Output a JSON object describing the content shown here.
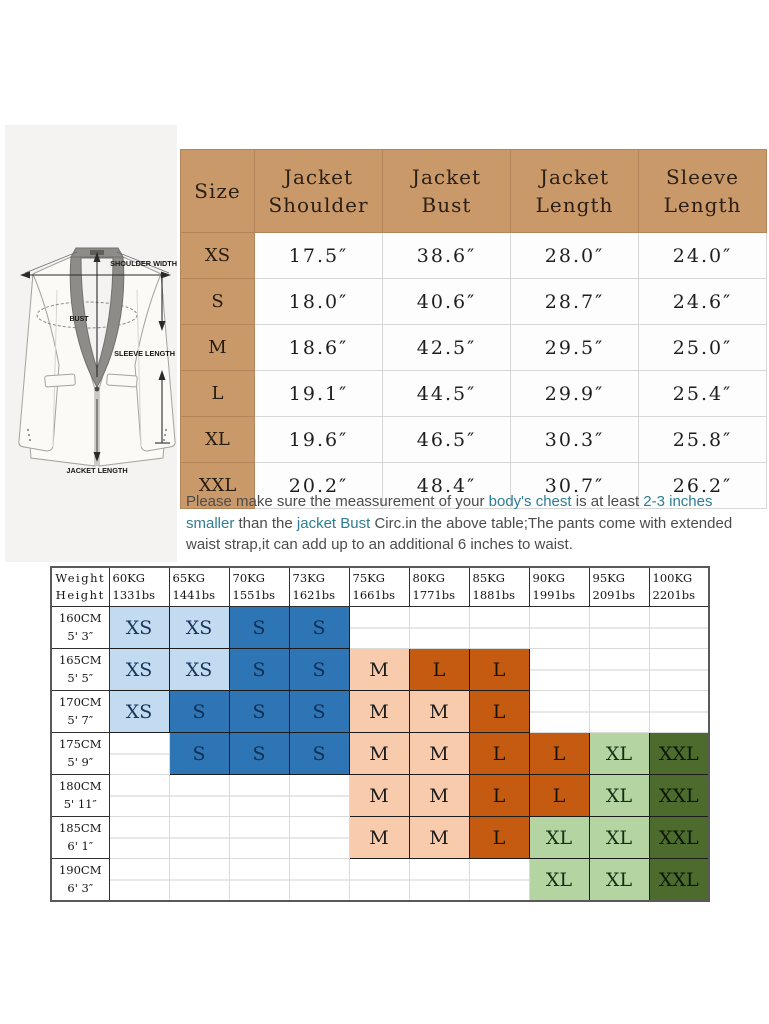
{
  "size_table": {
    "columns": [
      "Size",
      "Jacket Shoulder",
      "Jacket Bust",
      "Jacket Length",
      "Sleeve Length"
    ],
    "rows": [
      {
        "size": "XS",
        "values": [
          "17.5″",
          "38.6″",
          "28.0″",
          "24.0″"
        ]
      },
      {
        "size": "S",
        "values": [
          "18.0″",
          "40.6″",
          "28.7″",
          "24.6″"
        ]
      },
      {
        "size": "M",
        "values": [
          "18.6″",
          "42.5″",
          "29.5″",
          "25.0″"
        ]
      },
      {
        "size": "L",
        "values": [
          "19.1″",
          "44.5″",
          "29.9″",
          "25.4″"
        ]
      },
      {
        "size": "XL",
        "values": [
          "19.6″",
          "46.5″",
          "30.3″",
          "25.8″"
        ]
      },
      {
        "size": "XXL",
        "values": [
          "20.2″",
          "48.4″",
          "30.7″",
          "26.2″"
        ]
      }
    ]
  },
  "note": {
    "lines": [
      [
        {
          "t": "Please make sure the meassurement of your ",
          "h": false
        },
        {
          "t": "body's chest",
          "h": true
        },
        {
          "t": " is at least ",
          "h": false
        },
        {
          "t": "2-3 inches",
          "h": true
        }
      ],
      [
        {
          "t": "smaller",
          "h": true
        },
        {
          "t": " than the ",
          "h": false
        },
        {
          "t": "jacket Bust",
          "h": true
        },
        {
          "t": " Circ.in the above table;The pants come with extended",
          "h": false
        }
      ],
      [
        {
          "t": "waist strap,it can add up to an additional 6 inches to waist.",
          "h": false
        }
      ]
    ]
  },
  "fit_table": {
    "corner": {
      "top": "Weight",
      "bottom": "Height"
    },
    "weights": [
      {
        "kg": "60KG",
        "lbs": "1331bs"
      },
      {
        "kg": "65KG",
        "lbs": "1441bs"
      },
      {
        "kg": "70KG",
        "lbs": "1551bs"
      },
      {
        "kg": "73KG",
        "lbs": "1621bs"
      },
      {
        "kg": "75KG",
        "lbs": "1661bs"
      },
      {
        "kg": "80KG",
        "lbs": "1771bs"
      },
      {
        "kg": "85KG",
        "lbs": "1881bs"
      },
      {
        "kg": "90KG",
        "lbs": "1991bs"
      },
      {
        "kg": "95KG",
        "lbs": "2091bs"
      },
      {
        "kg": "100KG",
        "lbs": "2201bs"
      }
    ],
    "rows": [
      {
        "cm": "160CM",
        "ft": "5' 3″",
        "cells": [
          "XS",
          "XS",
          "S",
          "S",
          "",
          "",
          "",
          "",
          "",
          ""
        ]
      },
      {
        "cm": "165CM",
        "ft": "5' 5″",
        "cells": [
          "XS",
          "XS",
          "S",
          "S",
          "M",
          "L",
          "L",
          "",
          "",
          ""
        ]
      },
      {
        "cm": "170CM",
        "ft": "5' 7″",
        "cells": [
          "XS",
          "S",
          "S",
          "S",
          "M",
          "M",
          "L",
          "",
          "",
          ""
        ]
      },
      {
        "cm": "175CM",
        "ft": "5' 9″",
        "cells": [
          "",
          "S",
          "S",
          "S",
          "M",
          "M",
          "L",
          "L",
          "XL",
          "XXL"
        ]
      },
      {
        "cm": "180CM",
        "ft": "5' 11″",
        "cells": [
          "",
          "",
          "",
          "",
          "M",
          "M",
          "L",
          "L",
          "XL",
          "XXL"
        ]
      },
      {
        "cm": "185CM",
        "ft": "6' 1″",
        "cells": [
          "",
          "",
          "",
          "",
          "M",
          "M",
          "L",
          "XL",
          "XL",
          "XXL"
        ]
      },
      {
        "cm": "190CM",
        "ft": "6' 3″",
        "cells": [
          "",
          "",
          "",
          "",
          "",
          "",
          "",
          "XL",
          "XL",
          "XXL"
        ]
      }
    ]
  },
  "diagram": {
    "labels": {
      "shoulder_width": "SHOULDER WIDTH",
      "bust": "BUST",
      "sleeve_length": "SLEEVE LENGTH",
      "jacket_length": "JACKET LENGTH"
    }
  },
  "colors": {
    "header_tan": "#c9996a",
    "note_text": "#4c4c4e",
    "note_highlight": "#2e7d93",
    "sizes": {
      "XS": {
        "bg": "#c3dbf0",
        "fg": "#16365c"
      },
      "S": {
        "bg": "#2e75b6",
        "fg": "#102f52"
      },
      "M": {
        "bg": "#f8cbad",
        "fg": "#1c1c1c"
      },
      "L": {
        "bg": "#c55a11",
        "fg": "#161311"
      },
      "XL": {
        "bg": "#b4d5a2",
        "fg": "#152f14"
      },
      "XXL": {
        "bg": "#4c6b2c",
        "fg": "#0c1607"
      }
    }
  }
}
